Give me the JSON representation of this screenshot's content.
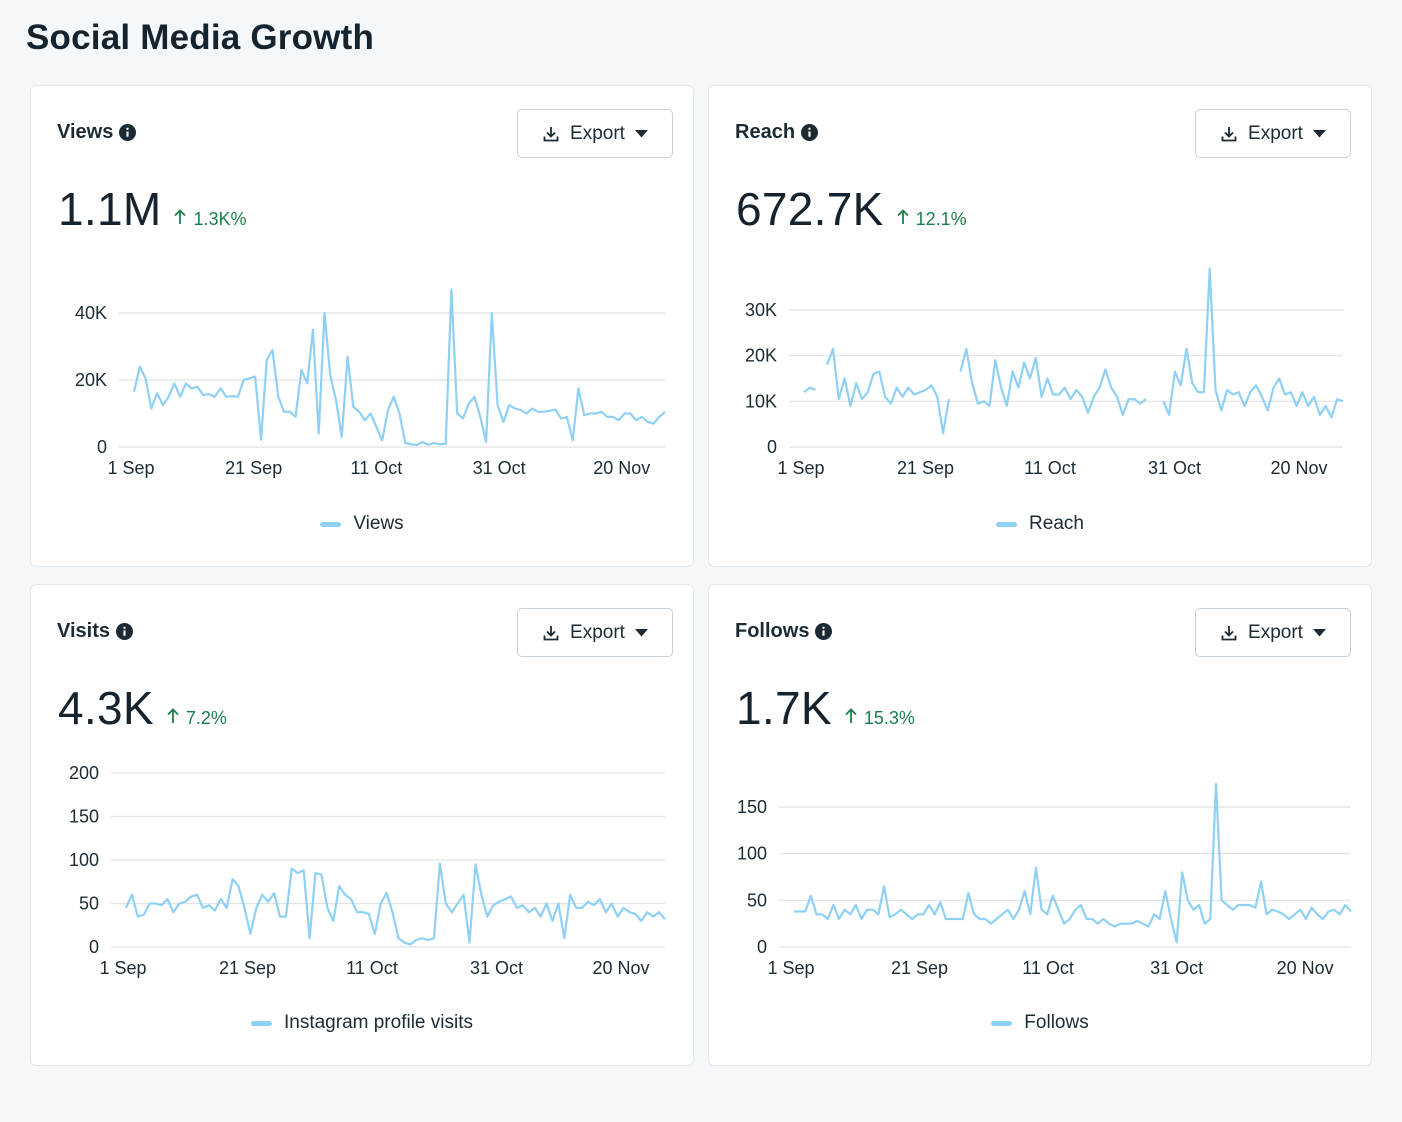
{
  "page": {
    "title": "Social Media Growth"
  },
  "accent": "#8fd0f5",
  "positive_color": "#1a7f4b",
  "export_label": "Export",
  "cards": [
    {
      "title": "Views",
      "value": "1.1M",
      "change": "1.3K%",
      "legend": "Views",
      "y_ticks": [
        "40K",
        "20K",
        "0"
      ],
      "x_ticks": [
        "1 Sep",
        "21 Sep",
        "11 Oct",
        "31 Oct",
        "20 Nov"
      ]
    },
    {
      "title": "Reach",
      "value": "672.7K",
      "change": "12.1%",
      "legend": "Reach",
      "y_ticks": [
        "30K",
        "20K",
        "10K",
        "0"
      ],
      "x_ticks": [
        "1 Sep",
        "21 Sep",
        "11 Oct",
        "31 Oct",
        "20 Nov"
      ]
    },
    {
      "title": "Visits",
      "value": "4.3K",
      "change": "7.2%",
      "legend": "Instagram profile visits",
      "y_ticks": [
        "200",
        "150",
        "100",
        "50",
        "0"
      ],
      "x_ticks": [
        "1 Sep",
        "21 Sep",
        "11 Oct",
        "31 Oct",
        "20 Nov"
      ]
    },
    {
      "title": "Follows",
      "value": "1.7K",
      "change": "15.3%",
      "legend": "Follows",
      "y_ticks": [
        "150",
        "100",
        "50",
        "0"
      ],
      "x_ticks": [
        "1 Sep",
        "21 Sep",
        "11 Oct",
        "31 Oct",
        "20 Nov"
      ]
    }
  ],
  "chart_data": [
    {
      "type": "line",
      "title": "Views",
      "xlabel": "",
      "ylabel": "",
      "x_start": "1 Sep",
      "x_end": "29 Nov",
      "ylim": [
        0,
        40000
      ],
      "grid": true,
      "legend": "bottom-center",
      "series": [
        {
          "name": "Views",
          "values": [
            16500,
            24000,
            20500,
            11500,
            16000,
            12500,
            15000,
            19000,
            15000,
            19000,
            17500,
            18000,
            15500,
            15800,
            15000,
            17500,
            15000,
            15200,
            15000,
            20000,
            20500,
            21000,
            2200,
            26000,
            29000,
            15000,
            10500,
            10500,
            9000,
            23000,
            19000,
            35000,
            4000,
            40000,
            21500,
            14000,
            3000,
            27000,
            12000,
            10500,
            8000,
            10000,
            6000,
            2000,
            11000,
            15000,
            10000,
            1200,
            800,
            600,
            1500,
            700,
            1200,
            800,
            1000,
            47000,
            10000,
            8500,
            13000,
            15000,
            9000,
            1500,
            40000,
            12500,
            7500,
            12500,
            11500,
            11000,
            10000,
            11500,
            10500,
            10500,
            10800,
            11200,
            8500,
            9000,
            2000,
            17500,
            9500,
            10000,
            10000,
            10500,
            9000,
            9000,
            8000,
            10000,
            10000,
            8000,
            9000,
            7500,
            7000,
            9000,
            10500
          ]
        }
      ]
    },
    {
      "type": "line",
      "title": "Reach",
      "xlabel": "",
      "ylabel": "",
      "x_start": "1 Sep",
      "x_end": "29 Nov",
      "ylim": [
        0,
        30000
      ],
      "grid": true,
      "legend": "bottom-center",
      "series": [
        {
          "name": "Reach",
          "values": [
            12000,
            13000,
            12500,
            null,
            18000,
            21500,
            10500,
            15000,
            9000,
            14000,
            10500,
            12000,
            16000,
            16500,
            11000,
            9500,
            13000,
            11000,
            13000,
            11500,
            12000,
            12500,
            13500,
            11000,
            3000,
            10500,
            null,
            16500,
            21500,
            14000,
            9500,
            10000,
            9000,
            19000,
            13000,
            9000,
            16500,
            13000,
            18500,
            15000,
            19500,
            11000,
            15000,
            11500,
            11500,
            13000,
            10500,
            12500,
            11000,
            7500,
            11000,
            13000,
            17000,
            13000,
            11000,
            7000,
            10500,
            10500,
            9500,
            10500,
            null,
            null,
            10000,
            7000,
            16500,
            13500,
            21500,
            14000,
            12000,
            12000,
            39000,
            12500,
            8000,
            12500,
            11500,
            12000,
            9000,
            12000,
            13500,
            11000,
            8000,
            13000,
            15000,
            11500,
            12000,
            9000,
            12000,
            9000,
            11000,
            7000,
            9000,
            6500,
            10500,
            10000
          ]
        }
      ]
    },
    {
      "type": "line",
      "title": "Visits",
      "xlabel": "",
      "ylabel": "",
      "x_start": "1 Sep",
      "x_end": "29 Nov",
      "ylim": [
        0,
        200
      ],
      "grid": true,
      "legend": "bottom-center",
      "series": [
        {
          "name": "Instagram profile visits",
          "values": [
            45,
            60,
            35,
            37,
            50,
            50,
            48,
            55,
            40,
            50,
            52,
            58,
            60,
            45,
            48,
            42,
            55,
            45,
            78,
            70,
            45,
            15,
            45,
            60,
            52,
            62,
            35,
            35,
            90,
            85,
            88,
            10,
            85,
            83,
            45,
            30,
            70,
            60,
            55,
            40,
            40,
            38,
            15,
            50,
            62,
            40,
            10,
            5,
            3,
            8,
            10,
            8,
            10,
            96,
            50,
            40,
            50,
            60,
            5,
            95,
            60,
            35,
            48,
            52,
            55,
            58,
            45,
            48,
            40,
            45,
            35,
            50,
            30,
            50,
            10,
            60,
            45,
            45,
            52,
            48,
            55,
            40,
            50,
            35,
            45,
            40,
            38,
            30,
            40,
            35,
            40,
            32
          ]
        }
      ]
    },
    {
      "type": "line",
      "title": "Follows",
      "xlabel": "",
      "ylabel": "",
      "x_start": "1 Sep",
      "x_end": "29 Nov",
      "ylim": [
        0,
        175
      ],
      "grid": true,
      "legend": "bottom-center",
      "series": [
        {
          "name": "Follows",
          "values": [
            38,
            38,
            38,
            55,
            35,
            35,
            30,
            45,
            30,
            40,
            35,
            45,
            30,
            40,
            40,
            35,
            65,
            32,
            35,
            40,
            35,
            30,
            35,
            35,
            45,
            35,
            48,
            30,
            30,
            30,
            30,
            58,
            35,
            30,
            30,
            25,
            30,
            35,
            40,
            30,
            40,
            60,
            35,
            85,
            40,
            35,
            55,
            40,
            25,
            30,
            40,
            45,
            30,
            30,
            25,
            30,
            25,
            22,
            25,
            25,
            25,
            28,
            25,
            22,
            35,
            30,
            60,
            30,
            5,
            80,
            50,
            40,
            45,
            25,
            30,
            175,
            50,
            45,
            40,
            45,
            45,
            45,
            42,
            70,
            35,
            40,
            38,
            35,
            30,
            35,
            40,
            30,
            42,
            35,
            30,
            38,
            40,
            35,
            45,
            38
          ]
        }
      ]
    }
  ]
}
